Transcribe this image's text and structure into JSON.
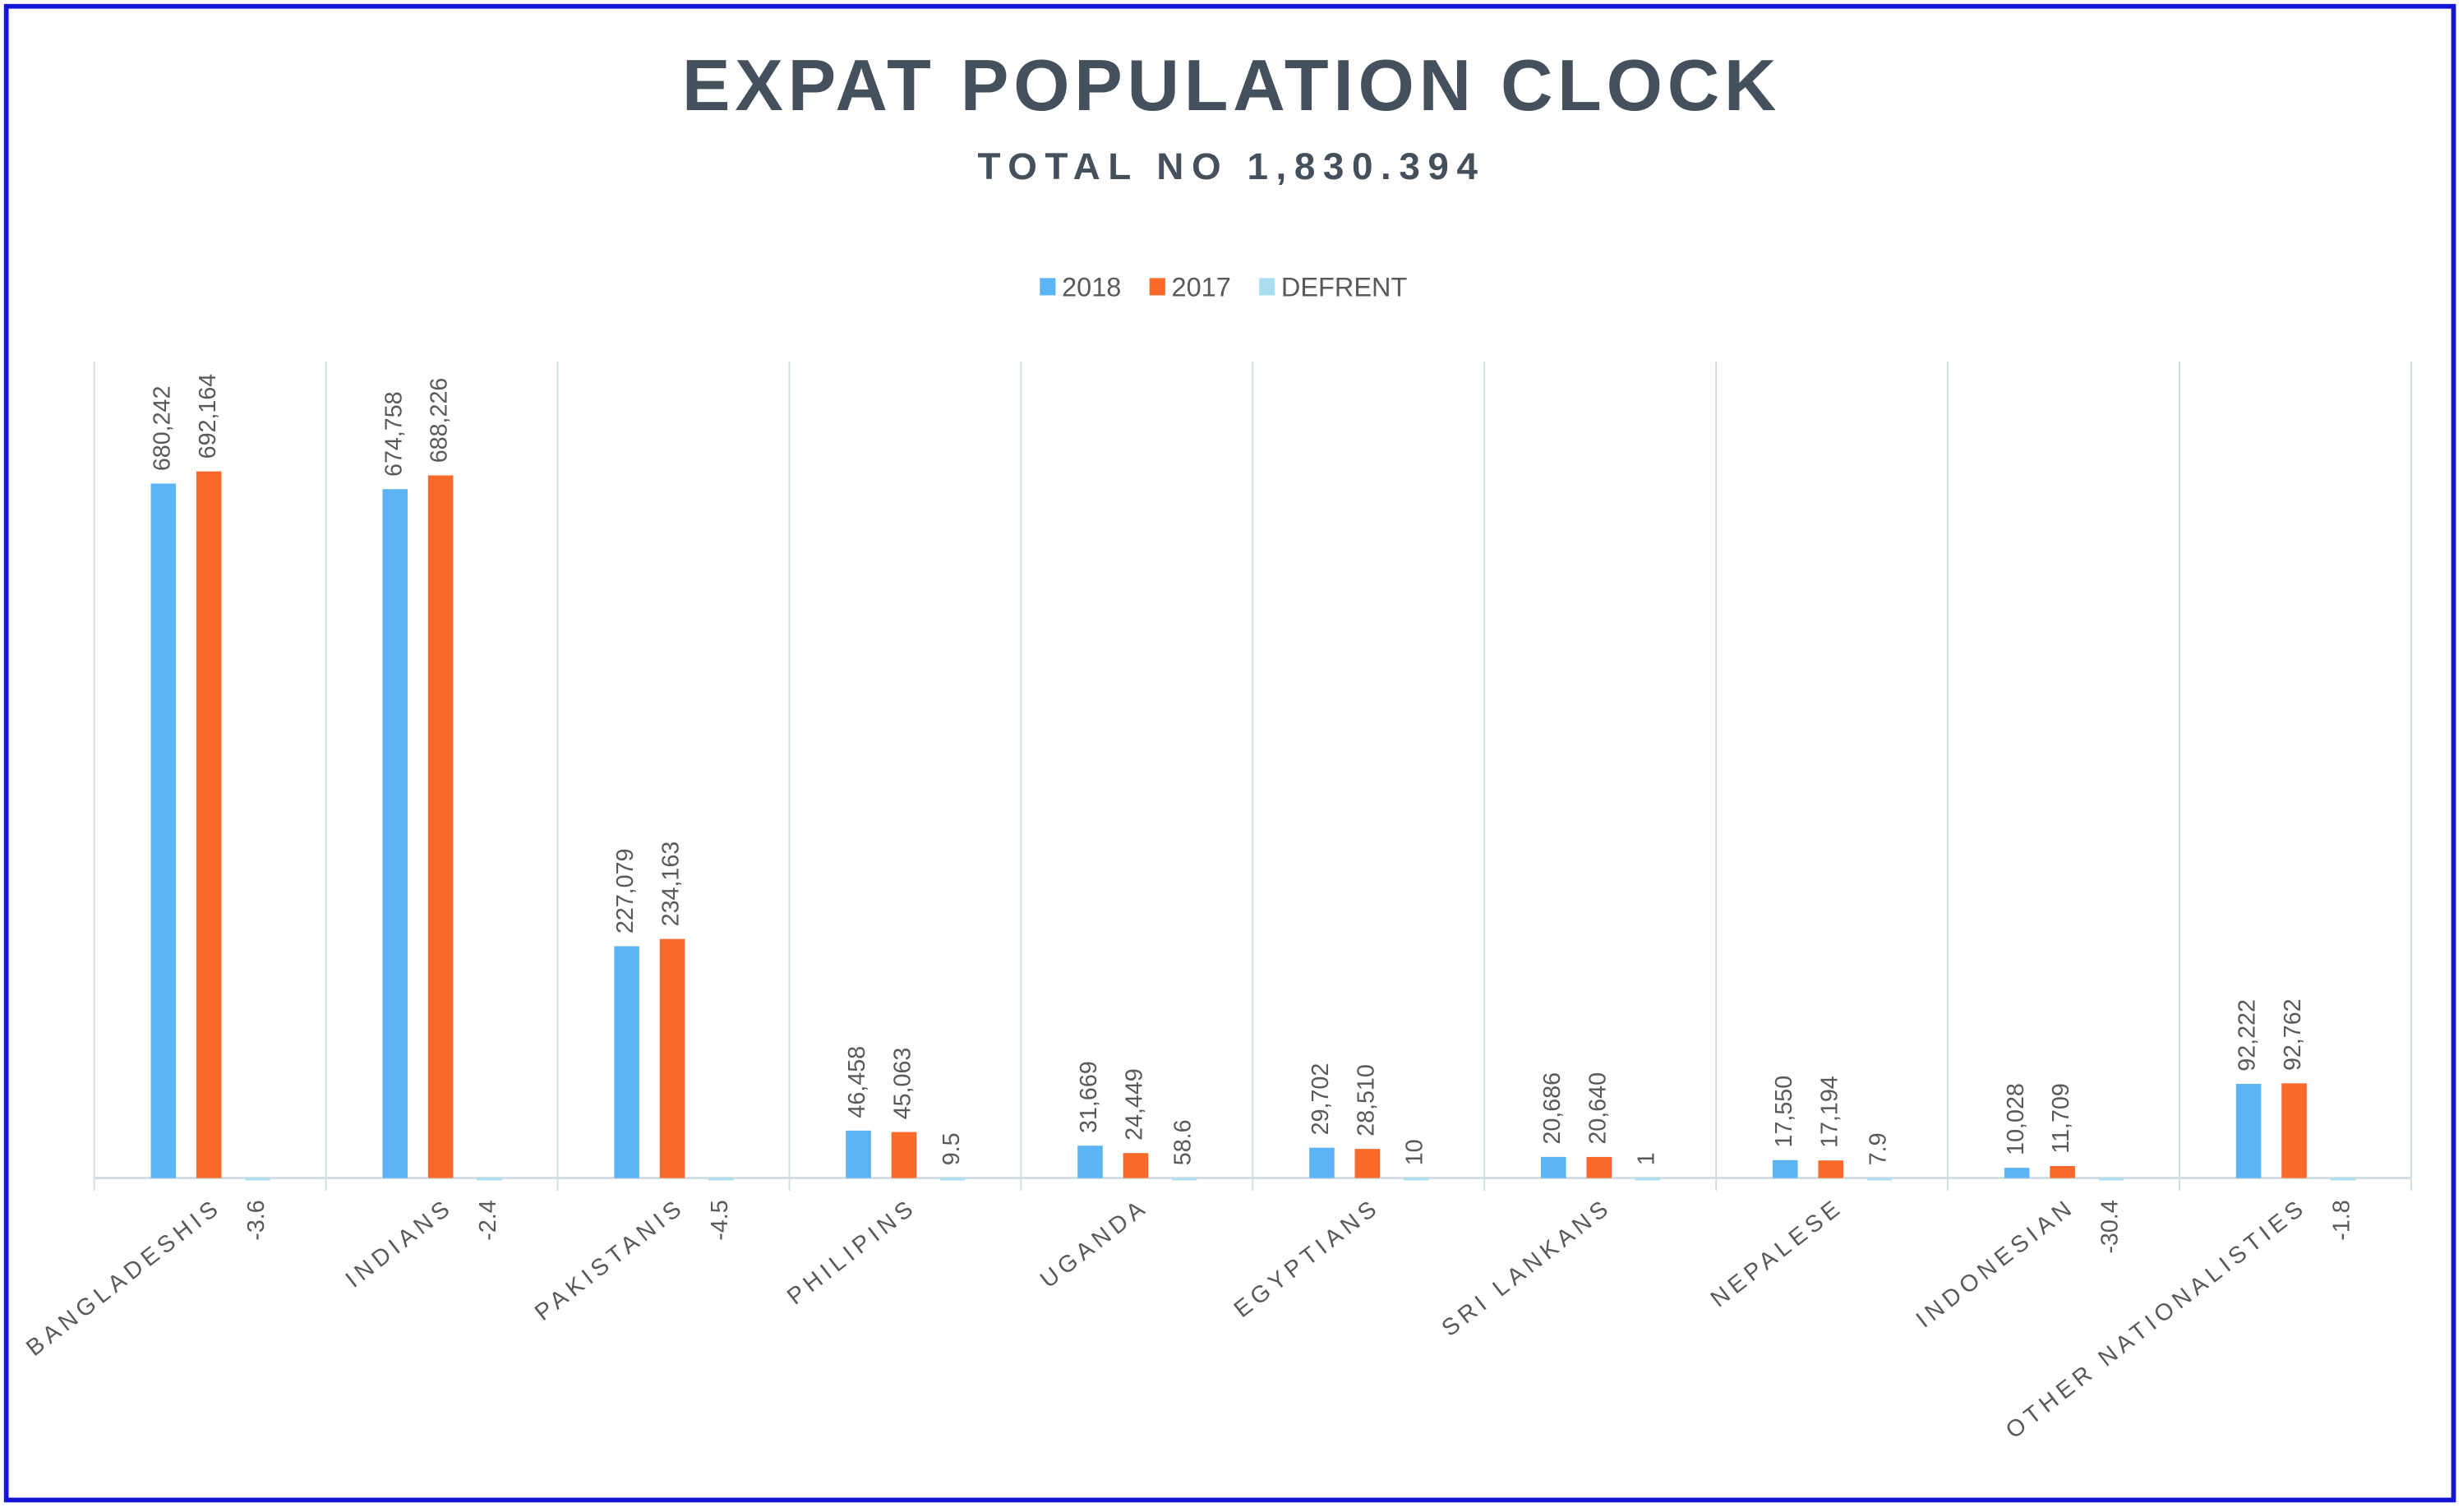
{
  "chart_data": {
    "type": "bar",
    "title": "EXPAT POPULATION CLOCK",
    "subtitle": "TOTAL NO 1,830.394",
    "categories": [
      "BANGLADESHIS",
      "INDIANS",
      "PAKISTANIS",
      "PHILIPINS",
      "UGANDA",
      "EGYPTIANS",
      "SRI LANKANS",
      "NEPALESE",
      "INDONESIAN",
      "OTHER NATIONALISTIES"
    ],
    "series": [
      {
        "name": "2018",
        "color": "#5ab4f5",
        "values": [
          680242,
          674758,
          227079,
          46458,
          31669,
          29702,
          20686,
          17550,
          10028,
          92222
        ],
        "value_labels": [
          "680,242",
          "674,758",
          "227,079",
          "46,458",
          "31,669",
          "29,702",
          "20,686",
          "17,550",
          "10,028",
          "92,222"
        ]
      },
      {
        "name": "2017",
        "color": "#f96a2a",
        "values": [
          692164,
          688226,
          234163,
          45063,
          24449,
          28510,
          20640,
          17194,
          11709,
          92762
        ],
        "value_labels": [
          "692,164",
          "688,226",
          "234,163",
          "45,063",
          "24,449",
          "28,510",
          "20,640",
          "17,194",
          "11,709",
          "92,762"
        ]
      },
      {
        "name": "DEFRENT",
        "color": "#a9def0",
        "values": [
          -3.6,
          -2.4,
          -4.5,
          9.5,
          58.6,
          10,
          1,
          7.9,
          -30.4,
          -1.8
        ]
      }
    ],
    "ylim": [
      0,
      800000
    ]
  }
}
